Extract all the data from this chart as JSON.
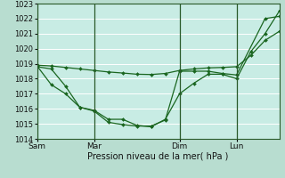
{
  "background_color": "#b8ddd0",
  "plot_bg_color": "#c8ece4",
  "grid_color": "#ffffff",
  "line_color": "#1a6620",
  "vline_color": "#2a5a2a",
  "xlabel": "Pression niveau de la mer( hPa )",
  "ylim": [
    1014,
    1023
  ],
  "yticks": [
    1014,
    1015,
    1016,
    1017,
    1018,
    1019,
    1020,
    1021,
    1022,
    1023
  ],
  "day_labels": [
    "Sam",
    "Mar",
    "Dim",
    "Lun"
  ],
  "xlim": [
    0,
    17
  ],
  "series1_x": [
    0,
    1,
    2,
    3,
    4,
    5,
    6,
    7,
    8,
    9,
    10,
    11,
    12,
    13,
    14,
    15,
    16,
    17
  ],
  "series1_y": [
    1018.8,
    1018.65,
    1017.5,
    1016.1,
    1015.9,
    1015.3,
    1015.3,
    1014.9,
    1014.8,
    1015.3,
    1017.0,
    1017.7,
    1018.3,
    1018.3,
    1018.0,
    1019.8,
    1021.0,
    1022.5
  ],
  "series2_x": [
    0,
    1,
    2,
    3,
    4,
    5,
    6,
    7,
    8,
    9,
    10,
    11,
    12,
    13,
    14,
    15,
    16,
    17
  ],
  "series2_y": [
    1018.9,
    1018.85,
    1018.75,
    1018.65,
    1018.55,
    1018.45,
    1018.38,
    1018.3,
    1018.28,
    1018.35,
    1018.55,
    1018.65,
    1018.72,
    1018.75,
    1018.8,
    1019.55,
    1020.55,
    1021.15
  ],
  "series3_x": [
    0,
    1,
    2,
    3,
    4,
    5,
    6,
    7,
    8,
    9,
    10,
    11,
    12,
    13,
    14,
    16,
    17
  ],
  "series3_y": [
    1018.85,
    1017.6,
    1017.0,
    1016.1,
    1015.85,
    1015.1,
    1014.95,
    1014.85,
    1014.85,
    1015.25,
    1018.5,
    1018.5,
    1018.5,
    1018.35,
    1018.25,
    1022.0,
    1022.15
  ],
  "xlabel_fontsize": 7,
  "ytick_fontsize": 6,
  "xtick_fontsize": 6.5
}
